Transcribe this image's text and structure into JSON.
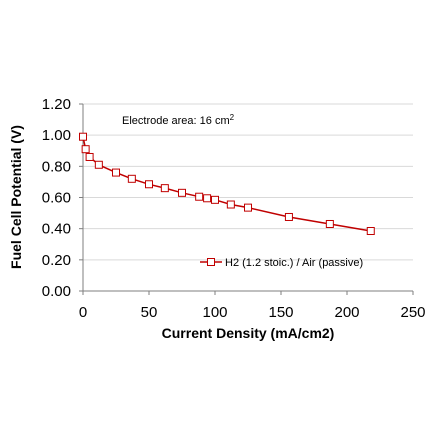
{
  "chart_data": {
    "type": "line",
    "title": "",
    "xlabel": "Current Density (mA/cm2)",
    "ylabel": "Fuel Cell Potential (V)",
    "xlim": [
      0,
      250
    ],
    "ylim": [
      0,
      1.2
    ],
    "x_ticks": [
      "0",
      "50",
      "100",
      "150",
      "200",
      "250"
    ],
    "y_ticks": [
      "0.00",
      "0.20",
      "0.40",
      "0.60",
      "0.80",
      "1.00",
      "1.20"
    ],
    "grid": true,
    "legend_position": "bottom-right",
    "annotation": {
      "text": "Electrode area: 16 cm",
      "superscript": "2"
    },
    "series": [
      {
        "name": "H2 (1.2 stoic.) / Air (passive)",
        "color": "#c00000",
        "marker": "square",
        "x": [
          0,
          2,
          5,
          12,
          25,
          37,
          50,
          62,
          75,
          88,
          94,
          100,
          112,
          125,
          156,
          187,
          218
        ],
        "y": [
          0.99,
          0.91,
          0.86,
          0.81,
          0.76,
          0.72,
          0.685,
          0.66,
          0.63,
          0.605,
          0.595,
          0.585,
          0.555,
          0.535,
          0.475,
          0.43,
          0.385
        ]
      }
    ]
  }
}
